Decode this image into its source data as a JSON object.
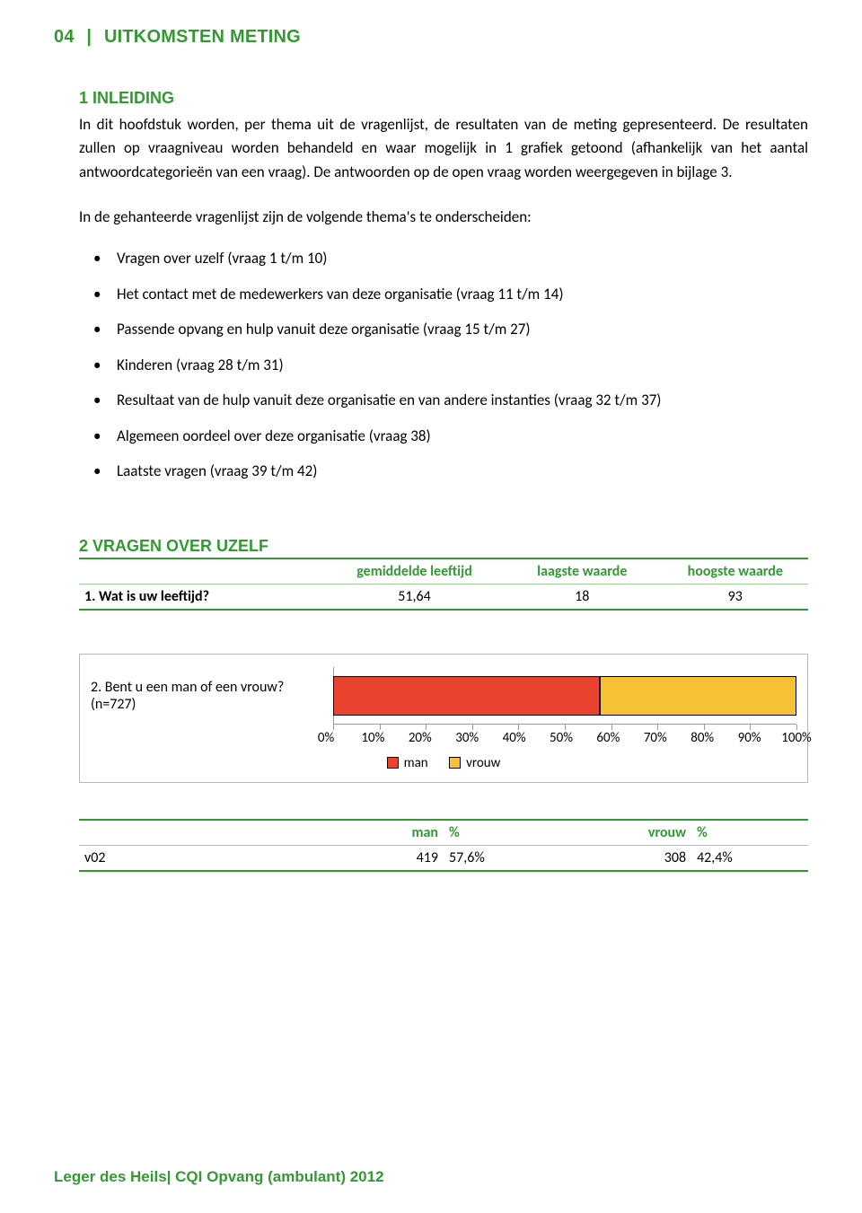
{
  "header": {
    "page_num": "04",
    "separator": "|",
    "title": "UITKOMSTEN METING"
  },
  "section1": {
    "heading": "1 INLEIDING",
    "para1": "In dit hoofdstuk worden, per thema uit de vragenlijst, de resultaten van de meting gepresenteerd. De resultaten zullen op vraagniveau worden behandeld en waar mogelijk in 1 grafiek getoond (afhankelijk van het aantal antwoordcategorieën van een vraag). De antwoorden op de open vraag worden weergegeven in bijlage 3.",
    "para2": "In de gehanteerde vragenlijst zijn de volgende thema's te onderscheiden:",
    "themes": [
      "Vragen over uzelf (vraag 1 t/m 10)",
      "Het contact met de medewerkers van deze organisatie (vraag 11 t/m 14)",
      "Passende opvang en hulp vanuit deze organisatie (vraag 15 t/m 27)",
      "Kinderen (vraag 28 t/m 31)",
      "Resultaat van de hulp vanuit deze organisatie en van andere instanties (vraag 32 t/m 37)",
      "Algemeen oordeel over deze organisatie (vraag 38)",
      "Laatste vragen (vraag 39 t/m 42)"
    ]
  },
  "section2": {
    "heading": "2 VRAGEN OVER UZELF",
    "table1": {
      "columns": [
        "",
        "gemiddelde leeftijd",
        "laagste waarde",
        "hoogste waarde"
      ],
      "row": {
        "q": "1. Wat is uw leeftijd?",
        "mean": "51,64",
        "min": "18",
        "max": "93"
      },
      "header_color": "#339933",
      "rule_thick": "#339933",
      "rule_thin": "#9dcf9d"
    },
    "chart": {
      "type": "stacked-bar-horizontal",
      "label": "2. Bent u een man of een vrouw? (n=727)",
      "series": [
        {
          "name": "man",
          "value": 57.6,
          "color": "#e8432e"
        },
        {
          "name": "vrouw",
          "value": 42.4,
          "color": "#f6c134"
        }
      ],
      "xlim": [
        0,
        100
      ],
      "xtick_step": 10,
      "xtick_labels": [
        "0%",
        "10%",
        "20%",
        "30%",
        "40%",
        "50%",
        "60%",
        "70%",
        "80%",
        "90%",
        "100%"
      ],
      "tick_color": "#9a9a9a",
      "border_color": "#b7b7b7",
      "legend": [
        "man",
        "vrouw"
      ]
    },
    "table2": {
      "columns": [
        "",
        "man",
        "%",
        "vrouw",
        "%"
      ],
      "row": {
        "id": "v02",
        "man_n": "419",
        "man_pct": "57,6%",
        "vrouw_n": "308",
        "vrouw_pct": "42,4%"
      },
      "header_color": "#339933"
    }
  },
  "footer": "Leger des Heils| CQI Opvang (ambulant) 2012"
}
